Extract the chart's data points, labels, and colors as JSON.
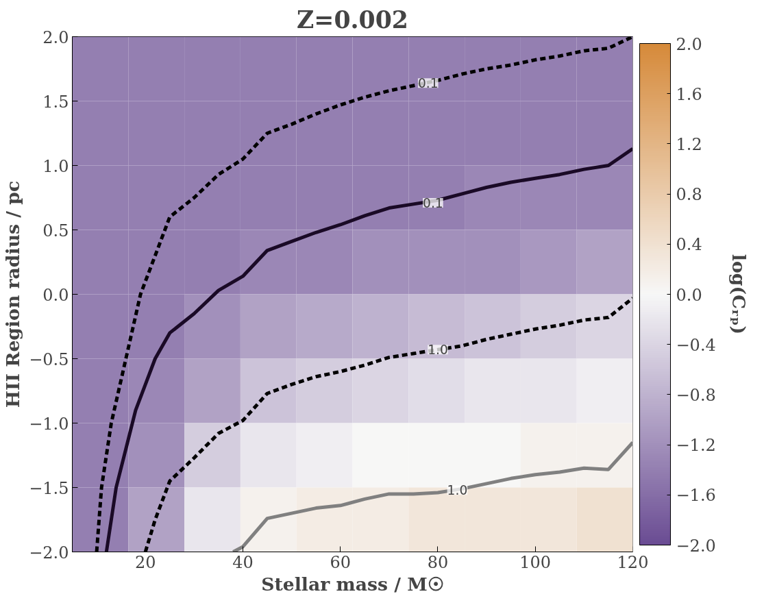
{
  "chart_data": {
    "type": "heatmap",
    "title": "Z=0.002",
    "xlabel": "Stellar mass / M☉",
    "ylabel": "HII Region radius / pc",
    "clabel": "log(Cᵣₚ)",
    "x": [
      10.75,
      22.25,
      33.75,
      45.25,
      56.75,
      68.25,
      79.75,
      91.25,
      102.75,
      114.25
    ],
    "cells": [
      [
        -1.4,
        -1.4,
        -1.4,
        -1.4,
        -1.4,
        -1.4,
        -1.4,
        -1.4,
        -1.4,
        -1.4
      ],
      [
        -1.4,
        -1.4,
        -1.4,
        -1.4,
        -1.4,
        -1.4,
        -1.4,
        -1.4,
        -1.4,
        -1.4
      ],
      [
        -1.4,
        -1.4,
        -1.4,
        -1.4,
        -1.4,
        -1.4,
        -1.4,
        -1.3,
        -1.3,
        -1.3
      ],
      [
        -1.4,
        -1.4,
        -1.4,
        -1.3,
        -1.3,
        -1.2,
        -1.2,
        -1.2,
        -1.1,
        -1.0
      ],
      [
        -1.4,
        -1.4,
        -1.2,
        -1.0,
        -0.9,
        -0.8,
        -0.7,
        -0.6,
        -0.5,
        -0.4
      ],
      [
        -1.4,
        -1.3,
        -1.0,
        -0.6,
        -0.5,
        -0.4,
        -0.3,
        -0.2,
        -0.2,
        -0.1
      ],
      [
        -1.4,
        -1.2,
        -0.5,
        -0.2,
        -0.1,
        0.0,
        0.0,
        0.0,
        0.1,
        0.1
      ],
      [
        -1.4,
        -1.0,
        -0.2,
        0.1,
        0.2,
        0.2,
        0.3,
        0.3,
        0.3,
        0.4
      ]
    ],
    "clim": [
      -2.0,
      2.0
    ],
    "cticks": [
      {
        "value": -2.0,
        "label": "−2.0"
      },
      {
        "value": -1.6,
        "label": "−1.6"
      },
      {
        "value": -1.2,
        "label": "−1.2"
      },
      {
        "value": -0.8,
        "label": "−0.8"
      },
      {
        "value": -0.4,
        "label": "−0.4"
      },
      {
        "value": 0.0,
        "label": "0.0"
      },
      {
        "value": 0.4,
        "label": "0.4"
      },
      {
        "value": 0.8,
        "label": "0.8"
      },
      {
        "value": 1.2,
        "label": "1.2"
      },
      {
        "value": 1.6,
        "label": "1.6"
      },
      {
        "value": 2.0,
        "label": "2.0"
      }
    ],
    "xlim": [
      5,
      120
    ],
    "ylim": [
      -2.0,
      2.0
    ],
    "xticks": [
      20,
      40,
      60,
      80,
      100,
      120
    ],
    "yticks": [
      {
        "value": -2.0,
        "label": "−2.0"
      },
      {
        "value": -1.5,
        "label": "−1.5"
      },
      {
        "value": -1.0,
        "label": "−1.0"
      },
      {
        "value": -0.5,
        "label": "−0.5"
      },
      {
        "value": 0.0,
        "label": "0.0"
      },
      {
        "value": 0.5,
        "label": "0.5"
      },
      {
        "value": 1.0,
        "label": "1.0"
      },
      {
        "value": 1.5,
        "label": "1.5"
      },
      {
        "value": 2.0,
        "label": "2.0"
      }
    ],
    "grid": false,
    "series": [
      {
        "type": "line",
        "color": "#000000",
        "line_style": "dashed",
        "x": [
          10,
          11,
          13,
          16,
          19,
          22,
          25,
          30,
          35,
          40,
          45,
          50,
          55,
          60,
          65,
          70,
          75,
          80,
          85,
          90,
          95,
          100,
          105,
          110,
          115,
          120
        ],
        "values": [
          -2.0,
          -1.5,
          -1.0,
          -0.5,
          0.0,
          0.3,
          0.6,
          0.75,
          0.93,
          1.05,
          1.25,
          1.32,
          1.4,
          1.47,
          1.53,
          1.58,
          1.62,
          1.66,
          1.71,
          1.75,
          1.78,
          1.82,
          1.85,
          1.89,
          1.91,
          2.0
        ]
      },
      {
        "type": "line",
        "color": "#1a0a26",
        "line_style": "solid",
        "x": [
          12,
          14,
          16,
          18,
          20,
          22,
          25,
          30,
          35,
          40,
          45,
          50,
          55,
          60,
          65,
          70,
          75,
          80,
          85,
          90,
          95,
          100,
          105,
          110,
          115,
          120
        ],
        "values": [
          -2.0,
          -1.5,
          -1.2,
          -0.9,
          -0.7,
          -0.5,
          -0.3,
          -0.15,
          0.03,
          0.14,
          0.34,
          0.41,
          0.48,
          0.54,
          0.61,
          0.67,
          0.7,
          0.73,
          0.78,
          0.83,
          0.87,
          0.9,
          0.93,
          0.97,
          1.0,
          1.13
        ]
      },
      {
        "type": "line",
        "color": "#000000",
        "line_style": "dashed",
        "x": [
          20,
          22,
          25,
          30,
          35,
          40,
          45,
          50,
          55,
          60,
          65,
          70,
          75,
          80,
          85,
          90,
          95,
          100,
          105,
          110,
          115,
          120
        ],
        "values": [
          -2.0,
          -1.75,
          -1.45,
          -1.27,
          -1.08,
          -0.98,
          -0.77,
          -0.7,
          -0.64,
          -0.6,
          -0.55,
          -0.49,
          -0.46,
          -0.43,
          -0.4,
          -0.35,
          -0.31,
          -0.27,
          -0.24,
          -0.2,
          -0.18,
          -0.03
        ]
      },
      {
        "type": "line",
        "color": "#808080",
        "line_style": "solid",
        "x": [
          38,
          40,
          45,
          50,
          55,
          60,
          65,
          70,
          75,
          80,
          85,
          90,
          95,
          100,
          105,
          110,
          115,
          120
        ],
        "values": [
          -2.0,
          -1.96,
          -1.74,
          -1.7,
          -1.66,
          -1.64,
          -1.59,
          -1.55,
          -1.55,
          -1.54,
          -1.51,
          -1.47,
          -1.43,
          -1.4,
          -1.38,
          -1.35,
          -1.36,
          -1.15
        ]
      }
    ],
    "annotations": [
      {
        "text": "0.1",
        "x": 78,
        "y": 1.64
      },
      {
        "text": "0.1",
        "x": 79,
        "y": 0.71
      },
      {
        "text": "1.0",
        "x": 80,
        "y": -0.43
      },
      {
        "text": "1.0",
        "x": 84,
        "y": -1.52
      }
    ]
  }
}
